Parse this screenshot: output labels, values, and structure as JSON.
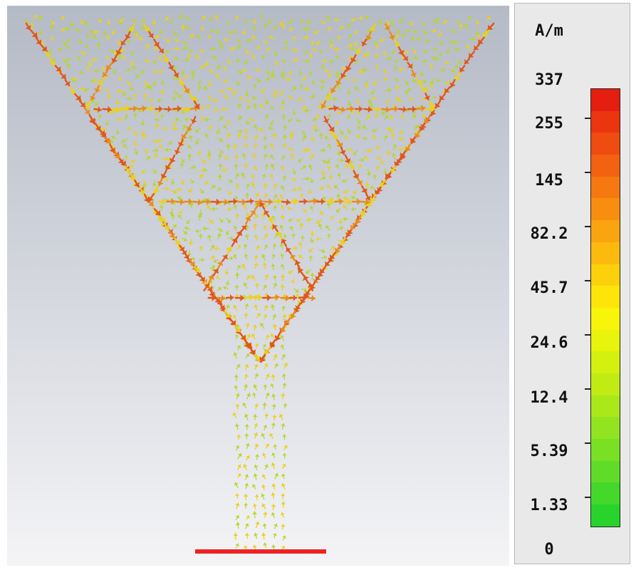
{
  "field_plot": {
    "unit": "A/m",
    "legend_labels": [
      "337",
      "255",
      "145",
      "82.2",
      "45.7",
      "24.6",
      "12.4",
      "5.39",
      "1.33",
      "0"
    ],
    "colors": {
      "background_top": "#b4bac6",
      "background_bottom": "#f4f4f6",
      "feed_line": "#ee2222",
      "arrow_low": "#b9d62a",
      "arrow_mid": "#e9d21a",
      "arrow_high": "#e2561a"
    },
    "colormap": [
      "#e51e0f",
      "#ea3510",
      "#ee4c10",
      "#f26210",
      "#f57810",
      "#f88e10",
      "#faa40f",
      "#fcba0e",
      "#fdd00c",
      "#fde50a",
      "#f8f40a",
      "#e8f40c",
      "#d4f00f",
      "#c0ec14",
      "#aae81a",
      "#92e420",
      "#7ae024",
      "#60dc28",
      "#44d82a",
      "#28d42c"
    ]
  }
}
